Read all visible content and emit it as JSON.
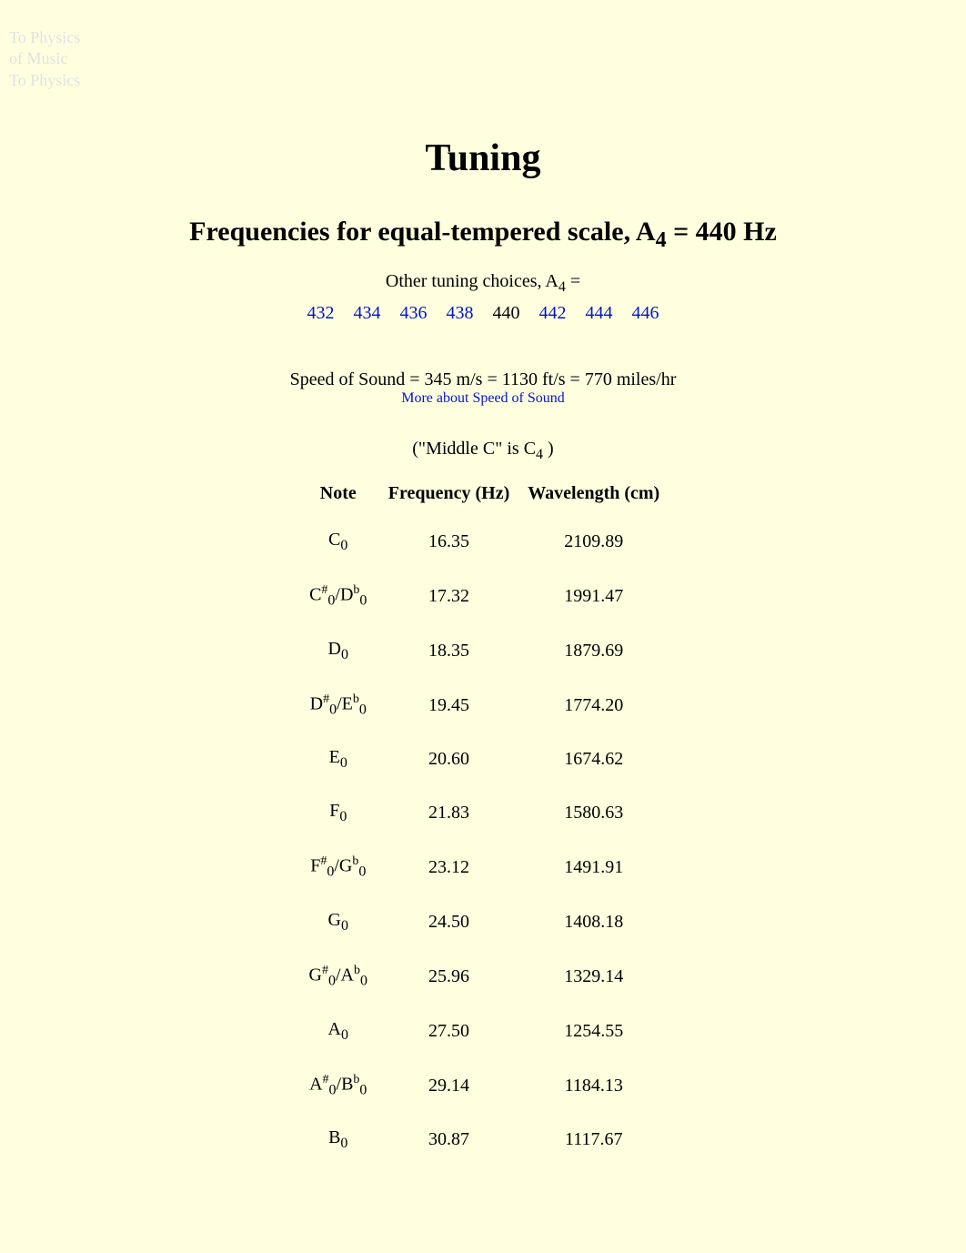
{
  "faded": {
    "line1": "To Physics",
    "line2": "of Music",
    "line3": "To Physics"
  },
  "title": "Tuning",
  "subtitle_prefix": "Frequencies for equal-tempered scale, A",
  "subtitle_sub": "4",
  "subtitle_suffix": " = 440 Hz",
  "choices_prefix": "Other tuning choices, A",
  "choices_sub": "4",
  "choices_suffix": " =",
  "tunings": {
    "t432": "432",
    "t434": "434",
    "t436": "436",
    "t438": "438",
    "t440": "440",
    "t442": "442",
    "t444": "444",
    "t446": "446"
  },
  "speed": "Speed of Sound = 345 m/s = 1130 ft/s = 770 miles/hr",
  "speed_link": "More about Speed of Sound",
  "middle_c_prefix": "(\"Middle C\" is C",
  "middle_c_sub": "4",
  "middle_c_suffix": " )",
  "headers": {
    "note": "Note",
    "freq": "Frequency (Hz)",
    "wave": "Wavelength (cm)"
  },
  "rows": {
    "r0": {
      "l1": "C",
      "s": "",
      "l2": "",
      "sub": "0",
      "f": "16.35",
      "w": "2109.89"
    },
    "r1": {
      "l1": "C",
      "s": "#",
      "l2": "D",
      "s2": "b",
      "sub": "0",
      "f": "17.32",
      "w": "1991.47"
    },
    "r2": {
      "l1": "D",
      "s": "",
      "l2": "",
      "sub": "0",
      "f": "18.35",
      "w": "1879.69"
    },
    "r3": {
      "l1": "D",
      "s": "#",
      "l2": "E",
      "s2": "b",
      "sub": "0",
      "f": "19.45",
      "w": "1774.20"
    },
    "r4": {
      "l1": "E",
      "s": "",
      "l2": "",
      "sub": "0",
      "f": "20.60",
      "w": "1674.62"
    },
    "r5": {
      "l1": "F",
      "s": "",
      "l2": "",
      "sub": "0",
      "f": "21.83",
      "w": "1580.63"
    },
    "r6": {
      "l1": "F",
      "s": "#",
      "l2": "G",
      "s2": "b",
      "sub": "0",
      "f": "23.12",
      "w": "1491.91"
    },
    "r7": {
      "l1": "G",
      "s": "",
      "l2": "",
      "sub": "0",
      "f": "24.50",
      "w": "1408.18"
    },
    "r8": {
      "l1": "G",
      "s": "#",
      "l2": "A",
      "s2": "b",
      "sub": "0",
      "f": "25.96",
      "w": "1329.14"
    },
    "r9": {
      "l1": "A",
      "s": "",
      "l2": "",
      "sub": "0",
      "f": "27.50",
      "w": "1254.55"
    },
    "r10": {
      "l1": "A",
      "s": "#",
      "l2": "B",
      "s2": "b",
      "sub": "0",
      "f": "29.14",
      "w": "1184.13"
    },
    "r11": {
      "l1": "B",
      "s": "",
      "l2": "",
      "sub": "0",
      "f": "30.87",
      "w": "1117.67"
    }
  }
}
